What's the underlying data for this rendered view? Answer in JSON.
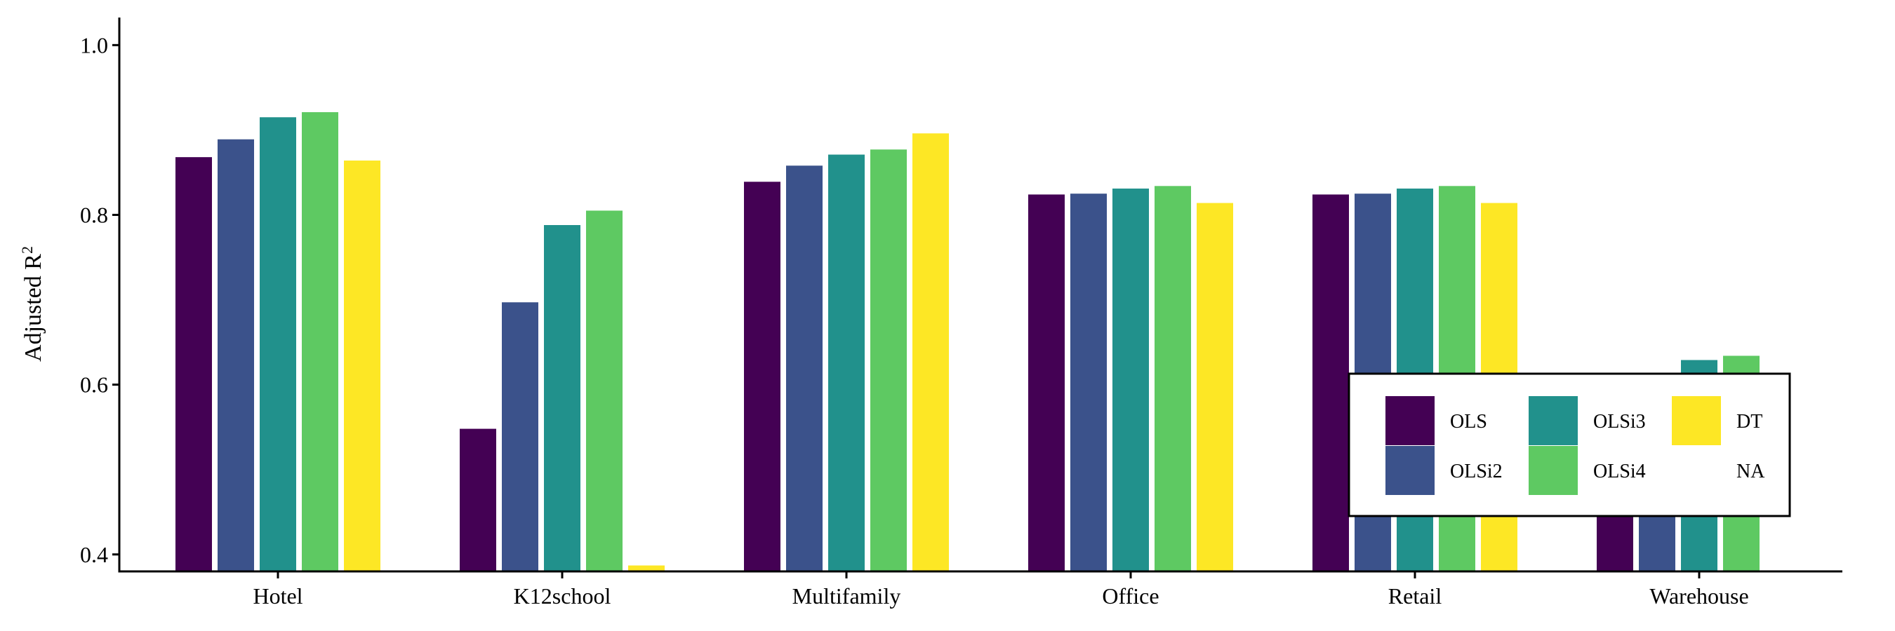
{
  "chart_data": {
    "type": "bar",
    "title": "",
    "xlabel": "",
    "ylabel": "Adjusted R",
    "ylabel_superscript": "2",
    "ylim": [
      0.38,
      1.03
    ],
    "yticks": [
      0.4,
      0.6,
      0.8,
      1.0
    ],
    "ytick_labels": [
      "0.4",
      "0.6",
      "0.8",
      "1.0"
    ],
    "grid": false,
    "legend_position": "bottom-right",
    "categories": [
      "Hotel",
      "K12school",
      "Multifamily",
      "Office",
      "Retail",
      "Warehouse"
    ],
    "series": [
      {
        "name": "OLS",
        "color": "#440154",
        "values": [
          0.868,
          0.548,
          0.839,
          0.824,
          0.824,
          0.46
        ]
      },
      {
        "name": "OLSi2",
        "color": "#3b528b",
        "values": [
          0.889,
          0.697,
          0.858,
          0.825,
          0.825,
          0.52
        ]
      },
      {
        "name": "OLSi3",
        "color": "#21918c",
        "values": [
          0.915,
          0.788,
          0.871,
          0.831,
          0.831,
          0.629
        ]
      },
      {
        "name": "OLSi4",
        "color": "#5ec962",
        "values": [
          0.921,
          0.805,
          0.877,
          0.834,
          0.834,
          0.634
        ]
      },
      {
        "name": "DT",
        "color": "#fde725",
        "values": [
          0.864,
          0.387,
          0.896,
          0.814,
          0.814,
          null
        ]
      },
      {
        "name": "NA",
        "color": null,
        "values": [
          null,
          null,
          null,
          null,
          null,
          null
        ]
      }
    ]
  }
}
